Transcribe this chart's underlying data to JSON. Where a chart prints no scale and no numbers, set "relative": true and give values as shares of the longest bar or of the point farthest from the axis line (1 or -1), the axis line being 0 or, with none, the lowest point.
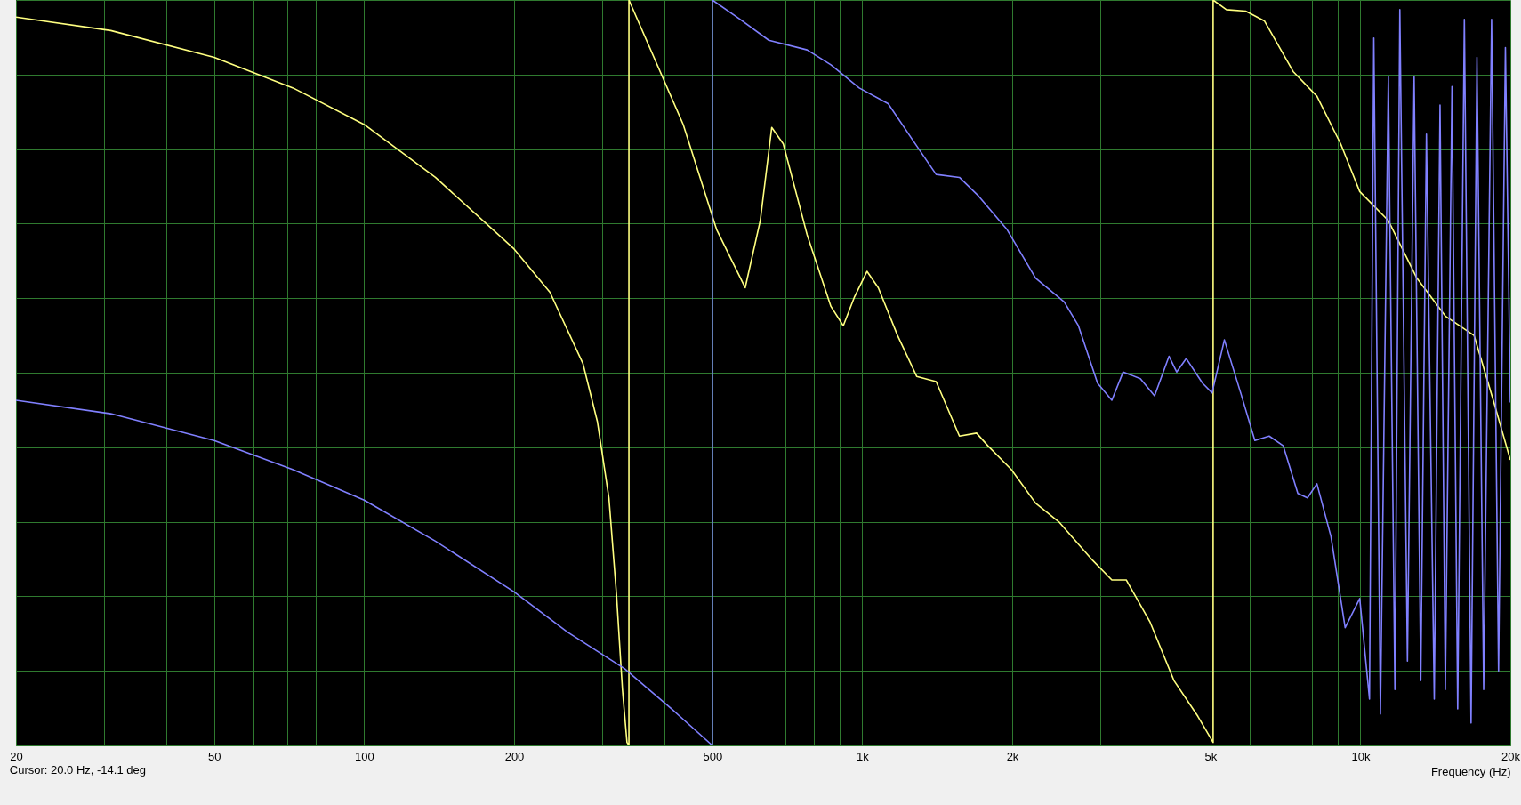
{
  "chart_data": {
    "type": "line",
    "relative": true,
    "xlabel": "Frequency (Hz)",
    "log": "x",
    "grid": true,
    "marker": "none",
    "line_style": "solid",
    "xlim": [
      20,
      20000
    ],
    "xticks": [
      {
        "value": 20,
        "label": "20"
      },
      {
        "value": 30,
        "label": null
      },
      {
        "value": 40,
        "label": null
      },
      50,
      {
        "value": 60,
        "label": null
      },
      {
        "value": 70,
        "label": null
      },
      {
        "value": 80,
        "label": null
      },
      {
        "value": 90,
        "label": null
      },
      100,
      200,
      {
        "value": 300,
        "label": null
      },
      {
        "value": 400,
        "label": null
      },
      500,
      {
        "value": 600,
        "label": null
      },
      {
        "value": 700,
        "label": null
      },
      {
        "value": 800,
        "label": null
      },
      {
        "value": 900,
        "label": null
      },
      {
        "value": 1000,
        "label": "1k"
      },
      {
        "value": 2000,
        "label": "2k"
      },
      {
        "value": 3000,
        "label": null
      },
      {
        "value": 4000,
        "label": null
      },
      {
        "value": 5000,
        "label": "5k"
      },
      {
        "value": 6000,
        "label": null
      },
      {
        "value": 7000,
        "label": null
      },
      {
        "value": 8000,
        "label": null
      },
      {
        "value": 9000,
        "label": null
      },
      {
        "value": 10000,
        "label": "10k"
      },
      {
        "value": 20000,
        "label": "20k"
      }
    ],
    "annotations": [
      "Cursor: 20.0 Hz, -14.1 deg"
    ],
    "series": [
      {
        "color": "#ffff80",
        "x": [
          20,
          31,
          50,
          72,
          100,
          139,
          200,
          236,
          275,
          294,
          310,
          321,
          330,
          337,
          340,
          340,
          437,
          510,
          582,
          624,
          658,
          694,
          775,
          865,
          916,
          965,
          1022,
          1077,
          1177,
          1286,
          1407,
          1567,
          1696,
          1787,
          1993,
          2228,
          2489,
          2903,
          3170,
          3388,
          3785,
          4224,
          4718,
          5063,
          5063,
          5383,
          5885,
          6415,
          7330,
          8180,
          9130,
          9970,
          11380,
          12980,
          14810,
          16910,
          18540,
          20000
        ],
        "values": [
          0.977,
          0.959,
          0.923,
          0.882,
          0.833,
          0.762,
          0.666,
          0.608,
          0.512,
          0.434,
          0.332,
          0.203,
          0.075,
          0.004,
          0,
          1,
          0.833,
          0.692,
          0.614,
          0.704,
          0.829,
          0.807,
          0.685,
          0.589,
          0.563,
          0.602,
          0.636,
          0.614,
          0.55,
          0.495,
          0.488,
          0.415,
          0.419,
          0.402,
          0.37,
          0.325,
          0.299,
          0.248,
          0.222,
          0.222,
          0.165,
          0.087,
          0.039,
          0.004,
          1,
          0.987,
          0.985,
          0.972,
          0.904,
          0.871,
          0.807,
          0.743,
          0.704,
          0.627,
          0.576,
          0.55,
          0.46,
          0.383
        ]
      },
      {
        "color": "#8080ff",
        "x": [
          20,
          31,
          50,
          72,
          100,
          139,
          200,
          256,
          333,
          414,
          500,
          500,
          569,
          649,
          775,
          865,
          986,
          1127,
          1257,
          1407,
          1567,
          1712,
          1953,
          2228,
          2543,
          2716,
          2967,
          3170,
          3340,
          3617,
          3862,
          4129,
          4277,
          4472,
          4820,
          5038,
          5333,
          5750,
          6140,
          6560,
          7000,
          7490,
          7830,
          8180,
          8730,
          9320,
          9970,
          10430,
          10640,
          10970,
          11380,
          11730,
          12000,
          12430,
          12820,
          13220,
          13570,
          14070,
          14450,
          14810,
          15270,
          15680,
          16170,
          16680,
          17140,
          17680,
          18340,
          18940,
          19550,
          20000
        ],
        "values": [
          0.463,
          0.445,
          0.409,
          0.37,
          0.329,
          0.274,
          0.206,
          0.152,
          0.103,
          0.049,
          0,
          1,
          0.974,
          0.946,
          0.933,
          0.913,
          0.882,
          0.861,
          0.814,
          0.766,
          0.762,
          0.737,
          0.692,
          0.627,
          0.595,
          0.563,
          0.486,
          0.463,
          0.501,
          0.492,
          0.469,
          0.522,
          0.501,
          0.519,
          0.486,
          0.473,
          0.544,
          0.473,
          0.409,
          0.415,
          0.402,
          0.338,
          0.332,
          0.351,
          0.28,
          0.158,
          0.197,
          0.062,
          0.949,
          0.042,
          0.897,
          0.075,
          0.987,
          0.113,
          0.897,
          0.087,
          0.82,
          0.062,
          0.859,
          0.075,
          0.884,
          0.049,
          0.974,
          0.03,
          0.923,
          0.075,
          0.974,
          0.1,
          0.936,
          0.46
        ]
      }
    ]
  }
}
